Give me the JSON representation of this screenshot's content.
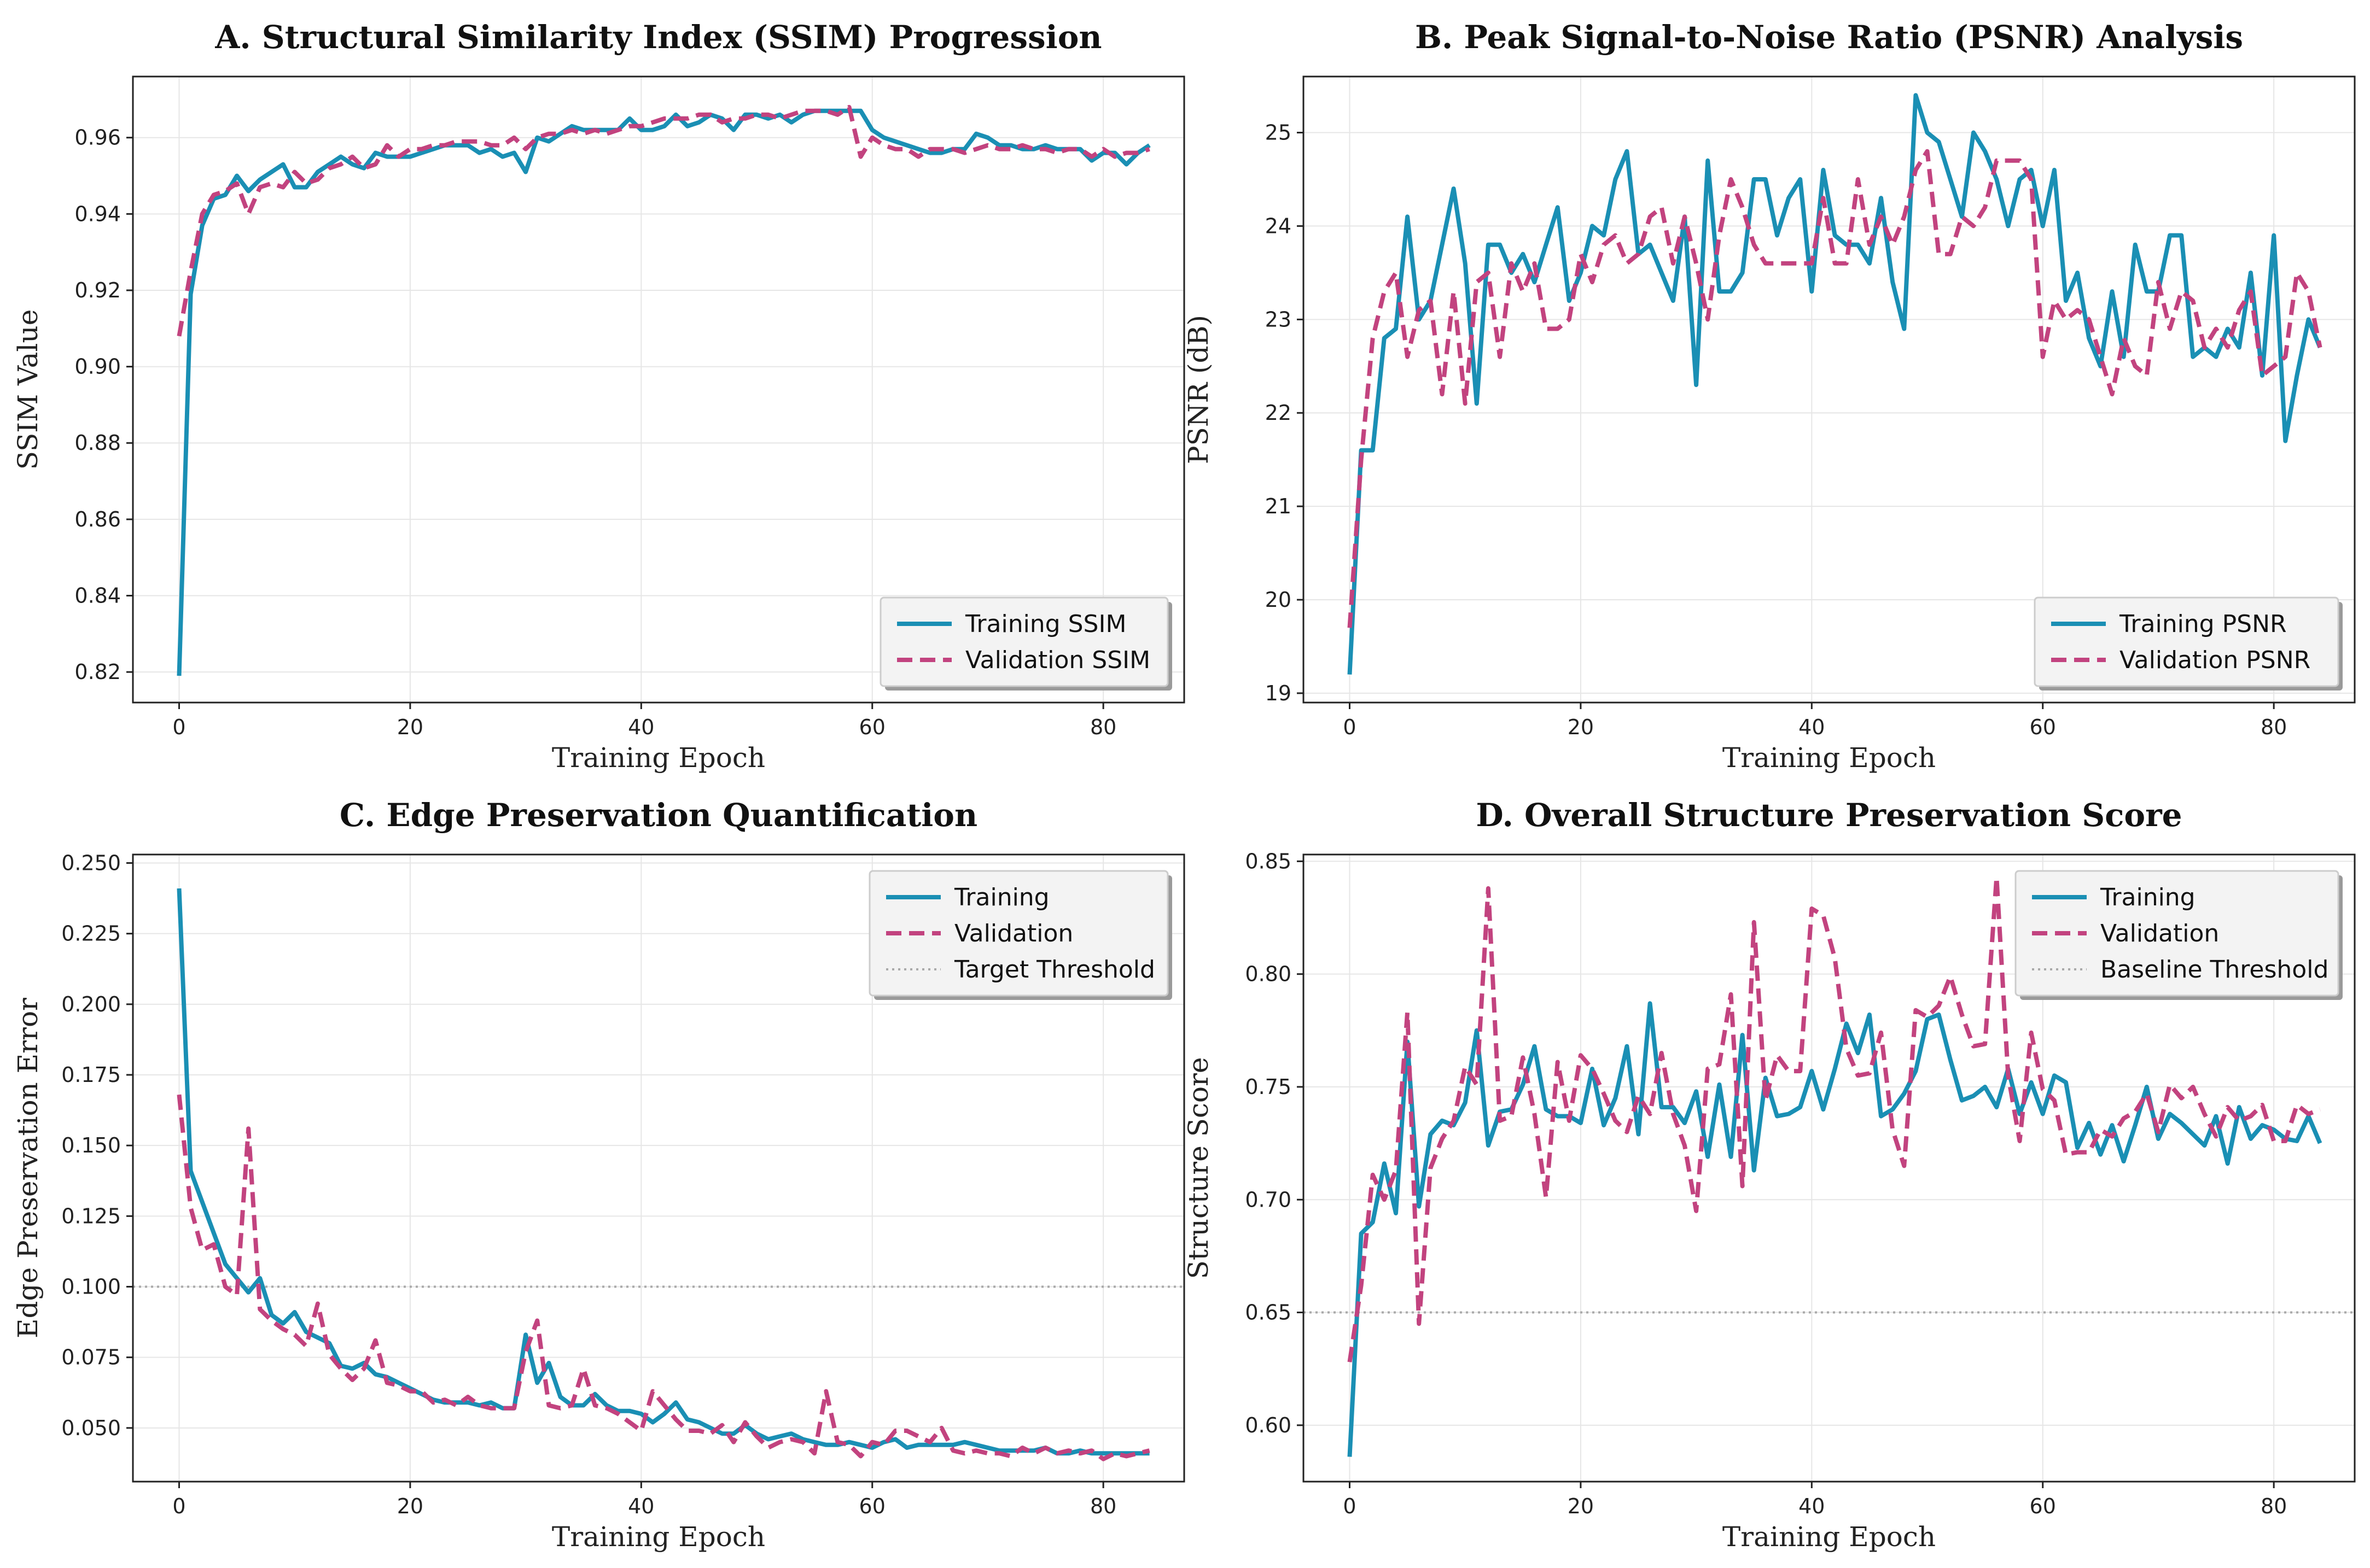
{
  "colors": {
    "training": "#1a8fb4",
    "validation": "#c2437f",
    "threshold": "#aaaaaa"
  },
  "chart_data": [
    {
      "id": "A",
      "type": "line",
      "title": "A. Structural Similarity Index (SSIM) Progression",
      "xlabel": "Training Epoch",
      "ylabel": "SSIM Value",
      "xlim": [
        -4,
        87
      ],
      "ylim": [
        0.812,
        0.976
      ],
      "xticks": [
        0,
        20,
        40,
        60,
        80
      ],
      "yticks": [
        0.82,
        0.84,
        0.86,
        0.88,
        0.9,
        0.92,
        0.94,
        0.96
      ],
      "ytick_labels": [
        "0.82",
        "0.84",
        "0.86",
        "0.88",
        "0.90",
        "0.92",
        "0.94",
        "0.96"
      ],
      "legend_position": "bottom-right",
      "series": [
        {
          "name": "Training SSIM",
          "style": "solid",
          "values": [
            0.819,
            0.919,
            0.937,
            0.944,
            0.945,
            0.95,
            0.946,
            0.949,
            0.951,
            0.953,
            0.947,
            0.947,
            0.951,
            0.953,
            0.955,
            0.953,
            0.952,
            0.956,
            0.955,
            0.955,
            0.955,
            0.956,
            0.957,
            0.958,
            0.958,
            0.958,
            0.956,
            0.957,
            0.955,
            0.956,
            0.951,
            0.96,
            0.959,
            0.961,
            0.963,
            0.962,
            0.962,
            0.962,
            0.962,
            0.965,
            0.962,
            0.962,
            0.963,
            0.966,
            0.963,
            0.964,
            0.966,
            0.965,
            0.962,
            0.966,
            0.966,
            0.965,
            0.966,
            0.964,
            0.966,
            0.967,
            0.967,
            0.967,
            0.967,
            0.967,
            0.962,
            0.96,
            0.959,
            0.958,
            0.957,
            0.956,
            0.956,
            0.957,
            0.957,
            0.961,
            0.96,
            0.958,
            0.958,
            0.957,
            0.957,
            0.958,
            0.957,
            0.957,
            0.957,
            0.954,
            0.956,
            0.956,
            0.953,
            0.956,
            0.958
          ]
        },
        {
          "name": "Validation SSIM",
          "style": "dashed",
          "values": [
            0.908,
            0.925,
            0.94,
            0.945,
            0.946,
            0.948,
            0.94,
            0.947,
            0.948,
            0.947,
            0.951,
            0.948,
            0.949,
            0.952,
            0.953,
            0.955,
            0.952,
            0.953,
            0.958,
            0.955,
            0.957,
            0.957,
            0.958,
            0.958,
            0.959,
            0.959,
            0.959,
            0.958,
            0.958,
            0.96,
            0.957,
            0.96,
            0.961,
            0.961,
            0.962,
            0.961,
            0.962,
            0.961,
            0.962,
            0.963,
            0.963,
            0.964,
            0.965,
            0.965,
            0.965,
            0.966,
            0.966,
            0.964,
            0.965,
            0.965,
            0.966,
            0.966,
            0.965,
            0.966,
            0.967,
            0.967,
            0.967,
            0.966,
            0.968,
            0.955,
            0.96,
            0.958,
            0.957,
            0.957,
            0.955,
            0.957,
            0.957,
            0.957,
            0.956,
            0.957,
            0.958,
            0.957,
            0.957,
            0.958,
            0.957,
            0.957,
            0.956,
            0.957,
            0.957,
            0.955,
            0.957,
            0.955,
            0.956,
            0.956,
            0.957
          ]
        }
      ]
    },
    {
      "id": "B",
      "type": "line",
      "title": "B. Peak Signal-to-Noise Ratio (PSNR) Analysis",
      "xlabel": "Training Epoch",
      "ylabel": "PSNR (dB)",
      "xlim": [
        -4,
        87
      ],
      "ylim": [
        18.9,
        25.6
      ],
      "xticks": [
        0,
        20,
        40,
        60,
        80
      ],
      "yticks": [
        19,
        20,
        21,
        22,
        23,
        24,
        25
      ],
      "ytick_labels": [
        "19",
        "20",
        "21",
        "22",
        "23",
        "24",
        "25"
      ],
      "legend_position": "bottom-right",
      "series": [
        {
          "name": "Training PSNR",
          "style": "solid",
          "values": [
            19.2,
            21.6,
            21.6,
            22.8,
            22.9,
            24.1,
            23.0,
            23.2,
            23.8,
            24.4,
            23.6,
            22.1,
            23.8,
            23.8,
            23.5,
            23.7,
            23.4,
            23.8,
            24.2,
            23.2,
            23.5,
            24.0,
            23.9,
            24.5,
            24.8,
            23.7,
            23.8,
            23.5,
            23.2,
            24.1,
            22.3,
            24.7,
            23.3,
            23.3,
            23.5,
            24.5,
            24.5,
            23.9,
            24.3,
            24.5,
            23.3,
            24.6,
            23.9,
            23.8,
            23.8,
            23.6,
            24.3,
            23.4,
            22.9,
            25.4,
            25.0,
            24.9,
            24.5,
            24.1,
            25.0,
            24.8,
            24.5,
            24.0,
            24.5,
            24.6,
            24.0,
            24.6,
            23.2,
            23.5,
            22.8,
            22.5,
            23.3,
            22.6,
            23.8,
            23.3,
            23.3,
            23.9,
            23.9,
            22.6,
            22.7,
            22.6,
            22.9,
            22.7,
            23.5,
            22.4,
            23.9,
            21.7,
            22.4,
            23.0,
            22.7
          ]
        },
        {
          "name": "Validation PSNR",
          "style": "dashed",
          "values": [
            19.7,
            21.5,
            22.8,
            23.3,
            23.5,
            22.6,
            23.1,
            23.2,
            22.2,
            23.3,
            22.1,
            23.4,
            23.5,
            22.6,
            23.6,
            23.3,
            23.6,
            22.9,
            22.9,
            23.0,
            23.7,
            23.4,
            23.8,
            23.9,
            23.6,
            23.7,
            24.1,
            24.2,
            23.6,
            24.1,
            23.6,
            23.0,
            23.9,
            24.5,
            24.2,
            23.8,
            23.6,
            23.6,
            23.6,
            23.6,
            23.6,
            24.3,
            23.6,
            23.6,
            24.5,
            23.8,
            24.1,
            23.8,
            24.1,
            24.6,
            24.8,
            23.7,
            23.7,
            24.1,
            24.0,
            24.2,
            24.7,
            24.7,
            24.7,
            24.5,
            22.6,
            23.2,
            23.0,
            23.1,
            23.0,
            22.6,
            22.2,
            22.8,
            22.5,
            22.4,
            23.4,
            22.9,
            23.3,
            23.2,
            22.7,
            22.9,
            22.7,
            23.1,
            23.3,
            22.4,
            22.5,
            22.6,
            23.5,
            23.3,
            22.7
          ]
        }
      ]
    },
    {
      "id": "C",
      "type": "line",
      "title": "C. Edge Preservation Quantification",
      "xlabel": "Training Epoch",
      "ylabel": "Edge Preservation Error",
      "xlim": [
        -4,
        87
      ],
      "ylim": [
        0.031,
        0.253
      ],
      "xticks": [
        0,
        20,
        40,
        60,
        80
      ],
      "yticks": [
        0.05,
        0.075,
        0.1,
        0.125,
        0.15,
        0.175,
        0.2,
        0.225,
        0.25
      ],
      "ytick_labels": [
        "0.050",
        "0.075",
        "0.100",
        "0.125",
        "0.150",
        "0.175",
        "0.200",
        "0.225",
        "0.250"
      ],
      "legend_position": "top-right",
      "threshold": {
        "name": "Target Threshold",
        "value": 0.1
      },
      "series": [
        {
          "name": "Training",
          "style": "solid",
          "values": [
            0.241,
            0.141,
            0.13,
            0.119,
            0.108,
            0.103,
            0.098,
            0.103,
            0.09,
            0.087,
            0.091,
            0.084,
            0.082,
            0.08,
            0.072,
            0.071,
            0.073,
            0.069,
            0.068,
            0.066,
            0.064,
            0.062,
            0.06,
            0.059,
            0.059,
            0.059,
            0.058,
            0.059,
            0.057,
            0.057,
            0.083,
            0.066,
            0.073,
            0.061,
            0.058,
            0.058,
            0.062,
            0.058,
            0.056,
            0.056,
            0.055,
            0.052,
            0.055,
            0.059,
            0.053,
            0.052,
            0.05,
            0.048,
            0.048,
            0.051,
            0.048,
            0.046,
            0.047,
            0.048,
            0.046,
            0.045,
            0.044,
            0.044,
            0.045,
            0.044,
            0.043,
            0.045,
            0.046,
            0.043,
            0.044,
            0.044,
            0.044,
            0.044,
            0.045,
            0.044,
            0.043,
            0.042,
            0.042,
            0.042,
            0.042,
            0.043,
            0.041,
            0.041,
            0.042,
            0.041,
            0.041,
            0.041,
            0.041,
            0.041,
            0.041
          ]
        },
        {
          "name": "Validation",
          "style": "dashed",
          "values": [
            0.168,
            0.128,
            0.113,
            0.115,
            0.1,
            0.097,
            0.156,
            0.092,
            0.088,
            0.085,
            0.083,
            0.079,
            0.094,
            0.076,
            0.071,
            0.067,
            0.071,
            0.081,
            0.066,
            0.065,
            0.063,
            0.063,
            0.059,
            0.06,
            0.058,
            0.061,
            0.058,
            0.057,
            0.057,
            0.057,
            0.077,
            0.088,
            0.058,
            0.057,
            0.058,
            0.071,
            0.058,
            0.057,
            0.055,
            0.052,
            0.049,
            0.063,
            0.058,
            0.053,
            0.049,
            0.049,
            0.048,
            0.051,
            0.045,
            0.052,
            0.047,
            0.043,
            0.045,
            0.046,
            0.045,
            0.041,
            0.063,
            0.045,
            0.044,
            0.04,
            0.045,
            0.044,
            0.049,
            0.049,
            0.047,
            0.045,
            0.05,
            0.042,
            0.041,
            0.042,
            0.041,
            0.041,
            0.04,
            0.043,
            0.041,
            0.043,
            0.041,
            0.042,
            0.041,
            0.042,
            0.039,
            0.041,
            0.04,
            0.041,
            0.042
          ]
        }
      ]
    },
    {
      "id": "D",
      "type": "line",
      "title": "D. Overall Structure Preservation Score",
      "xlabel": "Training Epoch",
      "ylabel": "Structure Score",
      "xlim": [
        -4,
        87
      ],
      "ylim": [
        0.575,
        0.853
      ],
      "xticks": [
        0,
        20,
        40,
        60,
        80
      ],
      "yticks": [
        0.6,
        0.65,
        0.7,
        0.75,
        0.8,
        0.85
      ],
      "ytick_labels": [
        "0.60",
        "0.65",
        "0.70",
        "0.75",
        "0.80",
        "0.85"
      ],
      "legend_position": "top-right",
      "threshold": {
        "name": "Baseline Threshold",
        "value": 0.65
      },
      "series": [
        {
          "name": "Training",
          "style": "solid",
          "values": [
            0.586,
            0.685,
            0.69,
            0.716,
            0.694,
            0.77,
            0.697,
            0.729,
            0.735,
            0.733,
            0.743,
            0.775,
            0.724,
            0.739,
            0.74,
            0.751,
            0.768,
            0.74,
            0.737,
            0.737,
            0.734,
            0.758,
            0.733,
            0.745,
            0.768,
            0.729,
            0.787,
            0.741,
            0.741,
            0.734,
            0.748,
            0.719,
            0.751,
            0.719,
            0.773,
            0.713,
            0.754,
            0.737,
            0.738,
            0.741,
            0.757,
            0.74,
            0.758,
            0.778,
            0.765,
            0.782,
            0.737,
            0.74,
            0.747,
            0.757,
            0.78,
            0.782,
            0.762,
            0.744,
            0.746,
            0.75,
            0.741,
            0.758,
            0.738,
            0.752,
            0.738,
            0.755,
            0.752,
            0.723,
            0.734,
            0.72,
            0.733,
            0.717,
            0.733,
            0.75,
            0.727,
            0.738,
            0.734,
            0.729,
            0.724,
            0.737,
            0.716,
            0.741,
            0.727,
            0.733,
            0.731,
            0.727,
            0.726,
            0.737,
            0.725
          ]
        },
        {
          "name": "Validation",
          "style": "dashed",
          "values": [
            0.628,
            0.662,
            0.711,
            0.7,
            0.713,
            0.783,
            0.645,
            0.714,
            0.727,
            0.735,
            0.759,
            0.751,
            0.838,
            0.735,
            0.737,
            0.763,
            0.738,
            0.701,
            0.761,
            0.735,
            0.764,
            0.758,
            0.747,
            0.735,
            0.73,
            0.746,
            0.738,
            0.765,
            0.738,
            0.724,
            0.695,
            0.758,
            0.76,
            0.791,
            0.706,
            0.823,
            0.744,
            0.764,
            0.757,
            0.757,
            0.829,
            0.826,
            0.807,
            0.767,
            0.755,
            0.756,
            0.774,
            0.731,
            0.715,
            0.784,
            0.781,
            0.786,
            0.799,
            0.782,
            0.768,
            0.769,
            0.843,
            0.755,
            0.726,
            0.774,
            0.749,
            0.744,
            0.72,
            0.721,
            0.721,
            0.731,
            0.728,
            0.736,
            0.739,
            0.747,
            0.73,
            0.751,
            0.745,
            0.75,
            0.738,
            0.728,
            0.741,
            0.735,
            0.737,
            0.742,
            0.726,
            0.726,
            0.742,
            0.738,
            0.74
          ]
        }
      ]
    }
  ]
}
